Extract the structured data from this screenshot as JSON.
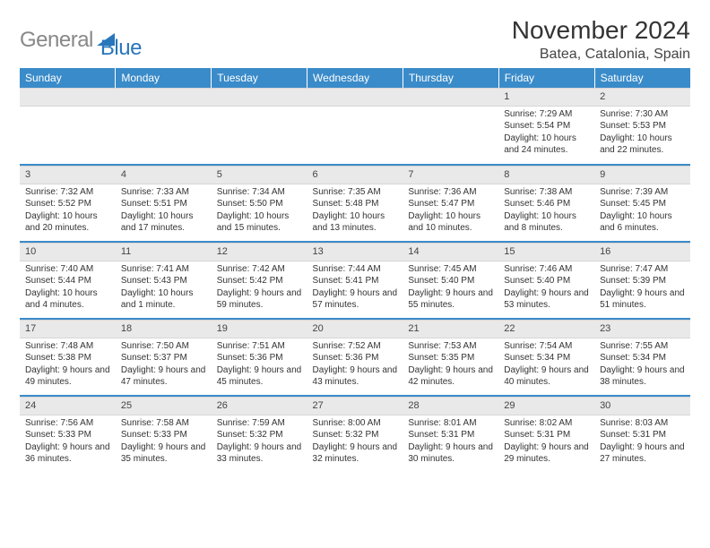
{
  "logo": {
    "gray": "General",
    "blue": "Blue"
  },
  "title": "November 2024",
  "location": "Batea, Catalonia, Spain",
  "colors": {
    "header_bg": "#3a8bc9",
    "header_text": "#ffffff",
    "daynum_bg": "#e9e9e9",
    "row_divider": "#3a8bc9",
    "body_text": "#333333",
    "logo_gray": "#888888",
    "logo_blue": "#2876bc"
  },
  "weekdays": [
    "Sunday",
    "Monday",
    "Tuesday",
    "Wednesday",
    "Thursday",
    "Friday",
    "Saturday"
  ],
  "weeks": [
    [
      null,
      null,
      null,
      null,
      null,
      {
        "day": "1",
        "sunrise": "Sunrise: 7:29 AM",
        "sunset": "Sunset: 5:54 PM",
        "daylight": "Daylight: 10 hours and 24 minutes."
      },
      {
        "day": "2",
        "sunrise": "Sunrise: 7:30 AM",
        "sunset": "Sunset: 5:53 PM",
        "daylight": "Daylight: 10 hours and 22 minutes."
      }
    ],
    [
      {
        "day": "3",
        "sunrise": "Sunrise: 7:32 AM",
        "sunset": "Sunset: 5:52 PM",
        "daylight": "Daylight: 10 hours and 20 minutes."
      },
      {
        "day": "4",
        "sunrise": "Sunrise: 7:33 AM",
        "sunset": "Sunset: 5:51 PM",
        "daylight": "Daylight: 10 hours and 17 minutes."
      },
      {
        "day": "5",
        "sunrise": "Sunrise: 7:34 AM",
        "sunset": "Sunset: 5:50 PM",
        "daylight": "Daylight: 10 hours and 15 minutes."
      },
      {
        "day": "6",
        "sunrise": "Sunrise: 7:35 AM",
        "sunset": "Sunset: 5:48 PM",
        "daylight": "Daylight: 10 hours and 13 minutes."
      },
      {
        "day": "7",
        "sunrise": "Sunrise: 7:36 AM",
        "sunset": "Sunset: 5:47 PM",
        "daylight": "Daylight: 10 hours and 10 minutes."
      },
      {
        "day": "8",
        "sunrise": "Sunrise: 7:38 AM",
        "sunset": "Sunset: 5:46 PM",
        "daylight": "Daylight: 10 hours and 8 minutes."
      },
      {
        "day": "9",
        "sunrise": "Sunrise: 7:39 AM",
        "sunset": "Sunset: 5:45 PM",
        "daylight": "Daylight: 10 hours and 6 minutes."
      }
    ],
    [
      {
        "day": "10",
        "sunrise": "Sunrise: 7:40 AM",
        "sunset": "Sunset: 5:44 PM",
        "daylight": "Daylight: 10 hours and 4 minutes."
      },
      {
        "day": "11",
        "sunrise": "Sunrise: 7:41 AM",
        "sunset": "Sunset: 5:43 PM",
        "daylight": "Daylight: 10 hours and 1 minute."
      },
      {
        "day": "12",
        "sunrise": "Sunrise: 7:42 AM",
        "sunset": "Sunset: 5:42 PM",
        "daylight": "Daylight: 9 hours and 59 minutes."
      },
      {
        "day": "13",
        "sunrise": "Sunrise: 7:44 AM",
        "sunset": "Sunset: 5:41 PM",
        "daylight": "Daylight: 9 hours and 57 minutes."
      },
      {
        "day": "14",
        "sunrise": "Sunrise: 7:45 AM",
        "sunset": "Sunset: 5:40 PM",
        "daylight": "Daylight: 9 hours and 55 minutes."
      },
      {
        "day": "15",
        "sunrise": "Sunrise: 7:46 AM",
        "sunset": "Sunset: 5:40 PM",
        "daylight": "Daylight: 9 hours and 53 minutes."
      },
      {
        "day": "16",
        "sunrise": "Sunrise: 7:47 AM",
        "sunset": "Sunset: 5:39 PM",
        "daylight": "Daylight: 9 hours and 51 minutes."
      }
    ],
    [
      {
        "day": "17",
        "sunrise": "Sunrise: 7:48 AM",
        "sunset": "Sunset: 5:38 PM",
        "daylight": "Daylight: 9 hours and 49 minutes."
      },
      {
        "day": "18",
        "sunrise": "Sunrise: 7:50 AM",
        "sunset": "Sunset: 5:37 PM",
        "daylight": "Daylight: 9 hours and 47 minutes."
      },
      {
        "day": "19",
        "sunrise": "Sunrise: 7:51 AM",
        "sunset": "Sunset: 5:36 PM",
        "daylight": "Daylight: 9 hours and 45 minutes."
      },
      {
        "day": "20",
        "sunrise": "Sunrise: 7:52 AM",
        "sunset": "Sunset: 5:36 PM",
        "daylight": "Daylight: 9 hours and 43 minutes."
      },
      {
        "day": "21",
        "sunrise": "Sunrise: 7:53 AM",
        "sunset": "Sunset: 5:35 PM",
        "daylight": "Daylight: 9 hours and 42 minutes."
      },
      {
        "day": "22",
        "sunrise": "Sunrise: 7:54 AM",
        "sunset": "Sunset: 5:34 PM",
        "daylight": "Daylight: 9 hours and 40 minutes."
      },
      {
        "day": "23",
        "sunrise": "Sunrise: 7:55 AM",
        "sunset": "Sunset: 5:34 PM",
        "daylight": "Daylight: 9 hours and 38 minutes."
      }
    ],
    [
      {
        "day": "24",
        "sunrise": "Sunrise: 7:56 AM",
        "sunset": "Sunset: 5:33 PM",
        "daylight": "Daylight: 9 hours and 36 minutes."
      },
      {
        "day": "25",
        "sunrise": "Sunrise: 7:58 AM",
        "sunset": "Sunset: 5:33 PM",
        "daylight": "Daylight: 9 hours and 35 minutes."
      },
      {
        "day": "26",
        "sunrise": "Sunrise: 7:59 AM",
        "sunset": "Sunset: 5:32 PM",
        "daylight": "Daylight: 9 hours and 33 minutes."
      },
      {
        "day": "27",
        "sunrise": "Sunrise: 8:00 AM",
        "sunset": "Sunset: 5:32 PM",
        "daylight": "Daylight: 9 hours and 32 minutes."
      },
      {
        "day": "28",
        "sunrise": "Sunrise: 8:01 AM",
        "sunset": "Sunset: 5:31 PM",
        "daylight": "Daylight: 9 hours and 30 minutes."
      },
      {
        "day": "29",
        "sunrise": "Sunrise: 8:02 AM",
        "sunset": "Sunset: 5:31 PM",
        "daylight": "Daylight: 9 hours and 29 minutes."
      },
      {
        "day": "30",
        "sunrise": "Sunrise: 8:03 AM",
        "sunset": "Sunset: 5:31 PM",
        "daylight": "Daylight: 9 hours and 27 minutes."
      }
    ]
  ]
}
